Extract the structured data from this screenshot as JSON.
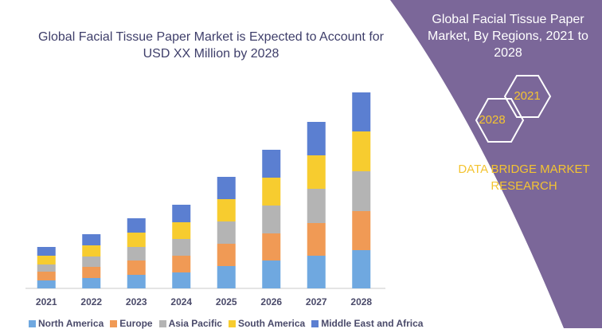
{
  "chart_data": {
    "type": "bar",
    "stacked": true,
    "title": "Global Facial Tissue Paper Market is Expected to Account for USD XX Million by 2028",
    "categories": [
      "2021",
      "2022",
      "2023",
      "2024",
      "2025",
      "2026",
      "2027",
      "2028"
    ],
    "series": [
      {
        "name": "North America",
        "color": "#6fa8e0",
        "values": [
          10,
          13,
          17,
          20,
          28,
          35,
          41,
          48
        ]
      },
      {
        "name": "Europe",
        "color": "#f09a55",
        "values": [
          11,
          14,
          18,
          21,
          28,
          34,
          41,
          49
        ]
      },
      {
        "name": "Asia Pacific",
        "color": "#b4b4b4",
        "values": [
          9,
          13,
          17,
          21,
          28,
          35,
          43,
          50
        ]
      },
      {
        "name": "South America",
        "color": "#f7cc2f",
        "values": [
          11,
          14,
          18,
          21,
          28,
          35,
          42,
          50
        ]
      },
      {
        "name": "Middle East and Africa",
        "color": "#5b7fd1",
        "values": [
          11,
          14,
          18,
          22,
          28,
          35,
          42,
          49
        ]
      }
    ],
    "legend_position": "bottom",
    "grid": false
  },
  "panel": {
    "title": "Global Facial Tissue Paper Market, By Regions, 2021 to 2028",
    "hex_left": "2028",
    "hex_right": "2021",
    "brand": "DATA BRIDGE MARKET RESEARCH",
    "background_color": "#7b6799",
    "accent_color": "#f4c431"
  }
}
